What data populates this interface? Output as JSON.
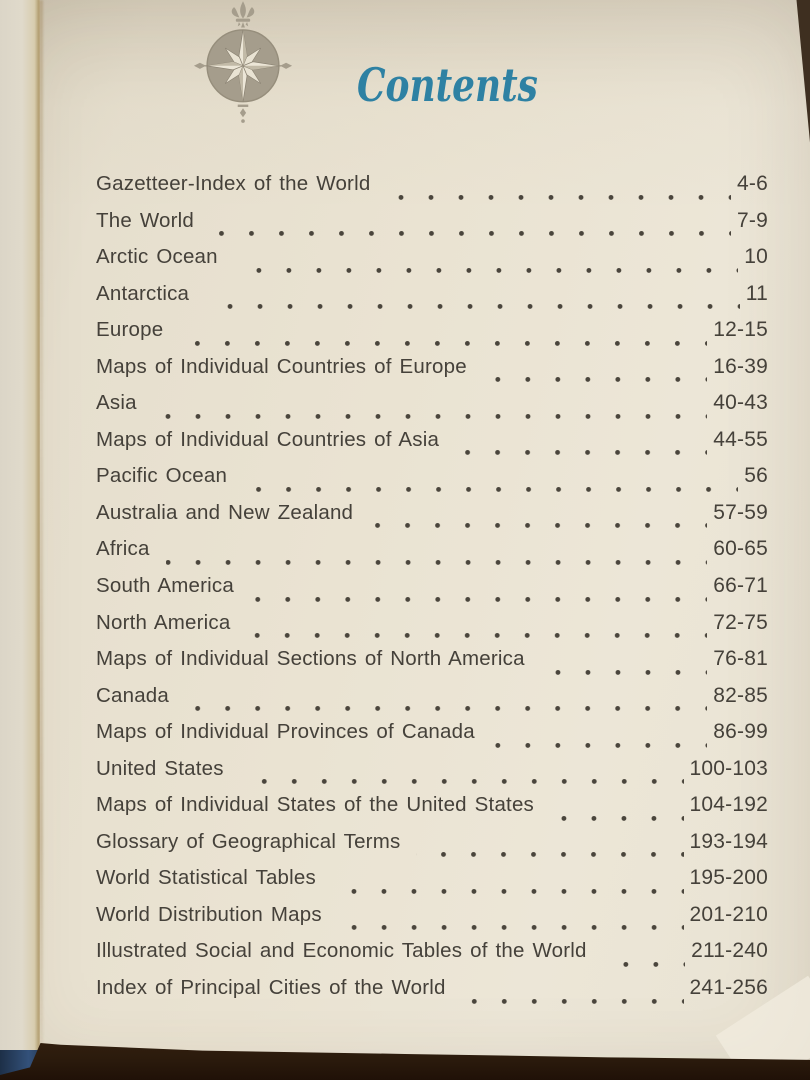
{
  "page": {
    "title": "Contents"
  },
  "icons": {
    "compass": "compass-rose-icon"
  },
  "toc": {
    "entries": [
      {
        "label": "Gazetteer-Index of the World",
        "pages": "4-6"
      },
      {
        "label": "The World",
        "pages": "7-9"
      },
      {
        "label": "Arctic Ocean",
        "pages": "10"
      },
      {
        "label": "Antarctica",
        "pages": "11"
      },
      {
        "label": "Europe",
        "pages": "12-15"
      },
      {
        "label": "Maps of Individual Countries of Europe",
        "pages": "16-39"
      },
      {
        "label": "Asia",
        "pages": "40-43"
      },
      {
        "label": "Maps of Individual Countries of Asia",
        "pages": "44-55"
      },
      {
        "label": "Pacific Ocean",
        "pages": "56"
      },
      {
        "label": "Australia and New Zealand",
        "pages": "57-59"
      },
      {
        "label": "Africa",
        "pages": "60-65"
      },
      {
        "label": "South America",
        "pages": "66-71"
      },
      {
        "label": "North America",
        "pages": "72-75"
      },
      {
        "label": "Maps of Individual Sections of North America",
        "pages": "76-81"
      },
      {
        "label": "Canada",
        "pages": "82-85"
      },
      {
        "label": "Maps of Individual Provinces of Canada",
        "pages": "86-99"
      },
      {
        "label": "United States",
        "pages": "100-103"
      },
      {
        "label": "Maps of Individual States of the United States",
        "pages": "104-192"
      },
      {
        "label": "Glossary of Geographical Terms",
        "pages": "193-194"
      },
      {
        "label": "World Statistical Tables",
        "pages": "195-200"
      },
      {
        "label": "World Distribution Maps",
        "pages": "201-210"
      },
      {
        "label": "Illustrated Social and Economic Tables of the World",
        "pages": "211-240"
      },
      {
        "label": "Index of Principal Cities of the World",
        "pages": "241-256"
      }
    ]
  },
  "colors": {
    "paper": "#eae3d2",
    "ink": "#45413a",
    "title_teal": "#2e81a3",
    "compass_gray": "#a59d8c",
    "table_brown": "#2a1a0c",
    "cover_navy": "#33517a"
  }
}
